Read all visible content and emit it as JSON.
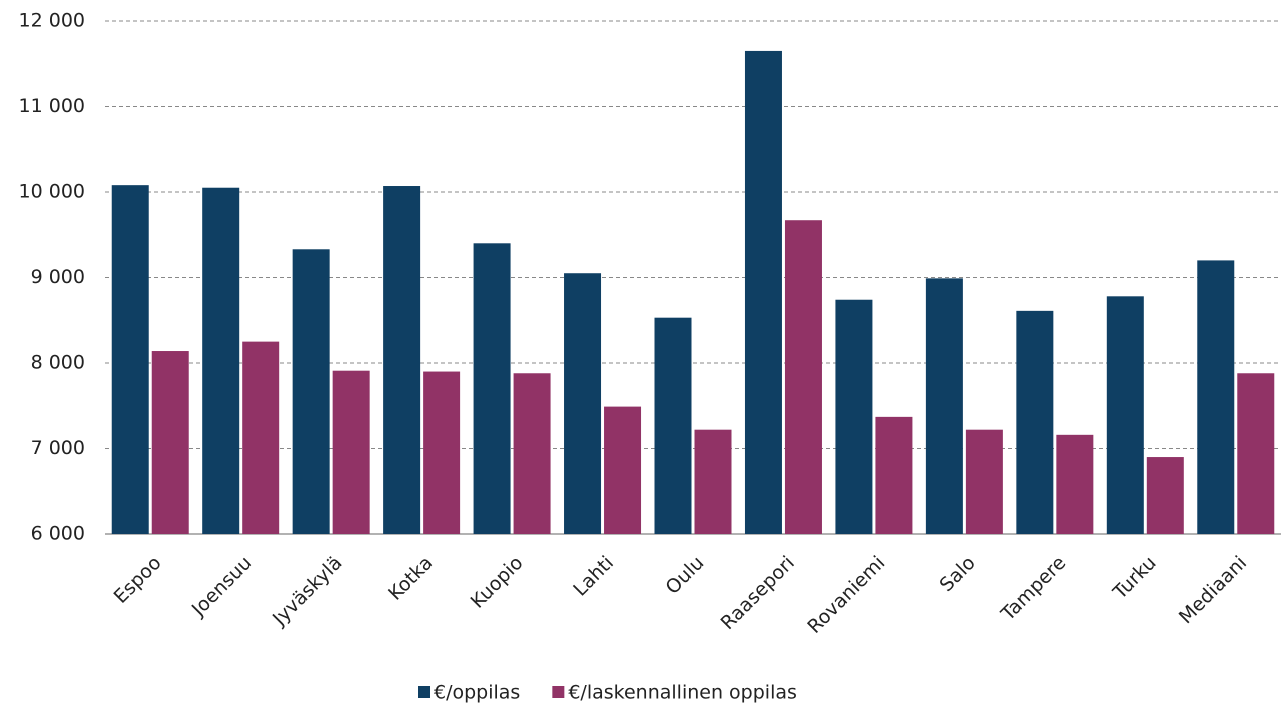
{
  "chart_data": {
    "type": "bar",
    "categories": [
      "Espoo",
      "Joensuu",
      "Jyväskylä",
      "Kotka",
      "Kuopio",
      "Lahti",
      "Oulu",
      "Raasepori",
      "Rovaniemi",
      "Salo",
      "Tampere",
      "Turku",
      "Mediaani"
    ],
    "series": [
      {
        "name": "€/oppilas",
        "color": "#0f3f63",
        "values": [
          10080,
          10050,
          9330,
          10070,
          9400,
          9050,
          8530,
          11650,
          8740,
          8990,
          8610,
          8780,
          9200
        ]
      },
      {
        "name": "€/laskennallinen oppilas",
        "color": "#913366",
        "values": [
          8140,
          8250,
          7910,
          7900,
          7880,
          7490,
          7220,
          9670,
          7370,
          7220,
          7160,
          6900,
          7880
        ]
      }
    ],
    "ylim": [
      6000,
      12000
    ],
    "yticks": [
      {
        "value": 6000,
        "label": "6 000"
      },
      {
        "value": 7000,
        "label": "7 000"
      },
      {
        "value": 8000,
        "label": "8 000"
      },
      {
        "value": 9000,
        "label": "9 000"
      },
      {
        "value": 10000,
        "label": "10 000"
      },
      {
        "value": 11000,
        "label": "11 000"
      },
      {
        "value": 12000,
        "label": "12 000"
      }
    ],
    "grid": true,
    "legend": "bottom"
  }
}
